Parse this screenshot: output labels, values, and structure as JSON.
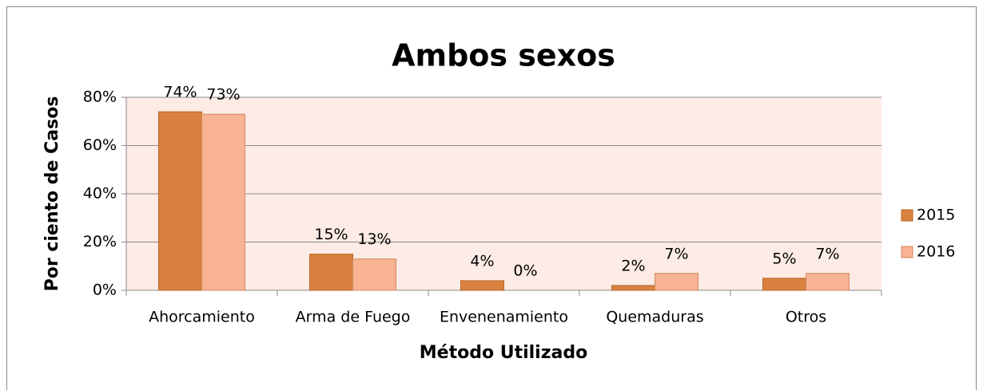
{
  "chart_data": {
    "type": "bar",
    "title": "Ambos sexos",
    "x_label": "Método Utilizado",
    "y_label": "Por ciento de Casos",
    "categories": [
      "Ahorcamiento",
      "Arma de Fuego",
      "Envenenamiento",
      "Quemaduras",
      "Otros"
    ],
    "series": [
      {
        "name": "2015",
        "color": "#d9823f",
        "values": [
          74,
          15,
          4,
          2,
          5
        ],
        "value_labels": [
          "74%",
          "15%",
          "4%",
          "2%",
          "5%"
        ]
      },
      {
        "name": "2016",
        "color": "#f8b393",
        "values": [
          73,
          13,
          0,
          7,
          7
        ],
        "value_labels": [
          "73%",
          "13%",
          "0%",
          "7%",
          "7%"
        ]
      }
    ],
    "ylim": [
      0,
      80
    ],
    "yticks": [
      {
        "value": 0,
        "label": "0%"
      },
      {
        "value": 20,
        "label": "20%"
      },
      {
        "value": 40,
        "label": "40%"
      },
      {
        "value": 60,
        "label": "60%"
      },
      {
        "value": 80,
        "label": "80%"
      }
    ],
    "grid": true,
    "legend": "right"
  }
}
